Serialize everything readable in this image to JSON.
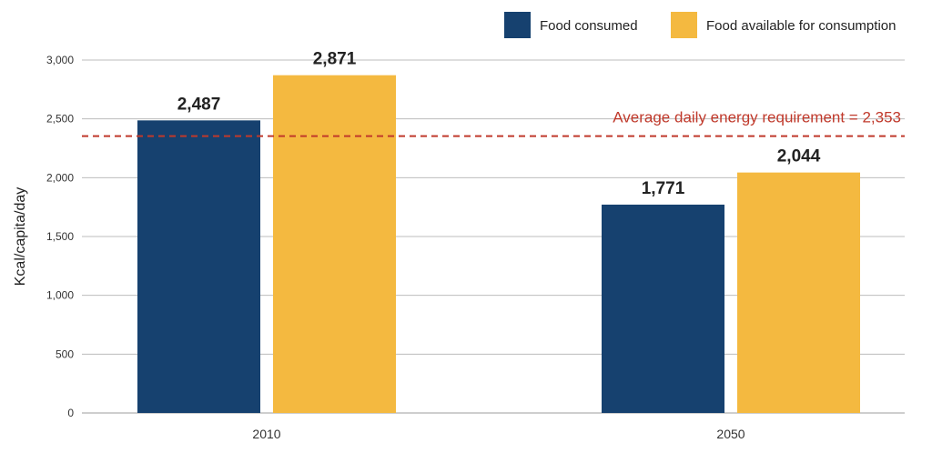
{
  "chart_data": {
    "type": "bar",
    "categories": [
      "2010",
      "2050"
    ],
    "series": [
      {
        "name": "Food consumed",
        "values": [
          2487,
          1771
        ],
        "labels": [
          "2,487",
          "1,771"
        ],
        "color": "#16416f"
      },
      {
        "name": "Food available for consumption",
        "values": [
          2871,
          2044
        ],
        "labels": [
          "2,871",
          "2,044"
        ],
        "color": "#f4b940"
      }
    ],
    "ylabel": "Kcal/capita/day",
    "ylim": [
      0,
      3000
    ],
    "yticks": [
      0,
      500,
      1000,
      1500,
      2000,
      2500,
      3000
    ],
    "ytick_labels": [
      "0",
      "500",
      "1,000",
      "1,500",
      "2,000",
      "2,500",
      "3,000"
    ],
    "grid": true,
    "legend": "top-right",
    "reference_line": {
      "value": 2353,
      "label": "Average daily energy requirement = 2,353",
      "color": "#c0392b",
      "style": "dashed"
    }
  }
}
